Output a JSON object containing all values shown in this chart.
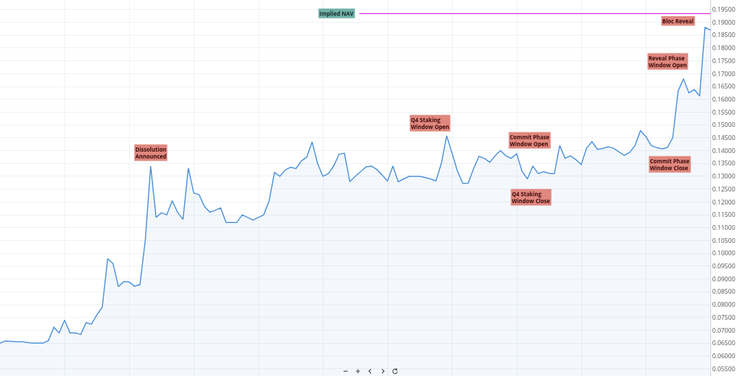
{
  "chart_data": {
    "type": "area",
    "categories": [
      null,
      null,
      null,
      null,
      null,
      null,
      null,
      null,
      null,
      null,
      null,
      null,
      null,
      null,
      null,
      null,
      null,
      null,
      null,
      null,
      null,
      null,
      null,
      null,
      null,
      null,
      null,
      null,
      null,
      null,
      null,
      null,
      null,
      null,
      null,
      null,
      null,
      null,
      null,
      null,
      null,
      null,
      null,
      null,
      null,
      null,
      null,
      null,
      null,
      null,
      null,
      null,
      null,
      null,
      null,
      null,
      null,
      null,
      null,
      null,
      null,
      null,
      null,
      null,
      null,
      null,
      null,
      null,
      null,
      null,
      null,
      null,
      null,
      null,
      null,
      null,
      null,
      null,
      null,
      null,
      null,
      null,
      null,
      null,
      null,
      null,
      null,
      null,
      null,
      null,
      null,
      null,
      null,
      null,
      null,
      null,
      null,
      null,
      null,
      null,
      null,
      null,
      null,
      null,
      null,
      null,
      null,
      null,
      null,
      null,
      null,
      null,
      null,
      null,
      null,
      null,
      null,
      null,
      null,
      null,
      null,
      null,
      null,
      null,
      null,
      null,
      null,
      null,
      null,
      null,
      null,
      null,
      null
    ],
    "series": [
      {
        "color": "#4a90d9",
        "values": [
          0.065,
          0.0658,
          0.0657,
          0.0656,
          0.0656,
          0.0653,
          0.065,
          0.065,
          0.065,
          0.066,
          0.0712,
          0.069,
          0.074,
          0.069,
          0.069,
          0.0684,
          0.073,
          0.0724,
          0.076,
          0.079,
          0.0979,
          0.096,
          0.087,
          0.089,
          0.0888,
          0.0872,
          0.0878,
          0.1052,
          0.134,
          0.114,
          0.1158,
          0.115,
          0.1205,
          0.116,
          0.1132,
          0.1332,
          0.1235,
          0.1228,
          0.1182,
          0.116,
          0.1168,
          0.1177,
          0.112,
          0.112,
          0.112,
          0.115,
          0.114,
          0.113,
          0.114,
          0.115,
          0.1204,
          0.1315,
          0.13,
          0.1325,
          0.1335,
          0.133,
          0.136,
          0.1375,
          0.1434,
          0.135,
          0.13,
          0.131,
          0.134,
          0.1386,
          0.139,
          0.1279,
          0.13,
          0.1318,
          0.1337,
          0.134,
          0.1327,
          0.1305,
          0.1282,
          0.134,
          0.1279,
          0.129,
          0.13,
          0.13,
          0.13,
          0.1295,
          0.129,
          0.1282,
          0.135,
          0.1458,
          0.139,
          0.132,
          0.1272,
          0.1273,
          0.133,
          0.1378,
          0.137,
          0.1355,
          0.138,
          0.14,
          0.138,
          0.137,
          0.1388,
          0.132,
          0.129,
          0.134,
          0.1311,
          0.1318,
          0.1312,
          0.131,
          0.142,
          0.137,
          0.138,
          0.1365,
          0.1346,
          0.141,
          0.1435,
          0.1405,
          0.1408,
          0.1415,
          0.141,
          0.1395,
          0.1382,
          0.1393,
          0.142,
          0.1478,
          0.1455,
          0.142,
          0.1412,
          0.1407,
          0.1412,
          0.145,
          0.1632,
          0.168,
          0.1625,
          0.1638,
          0.1613,
          0.188,
          0.187
        ]
      }
    ],
    "ylim": [
      0.0522,
      0.1987
    ],
    "yticks": [
      {
        "value": 0.055,
        "label": "0.05500"
      },
      {
        "value": 0.06,
        "label": "0.06000"
      },
      {
        "value": 0.065,
        "label": "0.06500"
      },
      {
        "value": 0.07,
        "label": "0.07000"
      },
      {
        "value": 0.075,
        "label": "0.07500"
      },
      {
        "value": 0.08,
        "label": "0.08000"
      },
      {
        "value": 0.085,
        "label": "0.08500"
      },
      {
        "value": 0.09,
        "label": "0.09000"
      },
      {
        "value": 0.095,
        "label": "0.09500"
      },
      {
        "value": 0.1,
        "label": "0.10000"
      },
      {
        "value": 0.105,
        "label": "0.10500"
      },
      {
        "value": 0.11,
        "label": "0.11000"
      },
      {
        "value": 0.115,
        "label": "0.11500"
      },
      {
        "value": 0.12,
        "label": "0.12000"
      },
      {
        "value": 0.125,
        "label": "0.12500"
      },
      {
        "value": 0.13,
        "label": "0.13000"
      },
      {
        "value": 0.135,
        "label": "0.13500"
      },
      {
        "value": 0.14,
        "label": "0.14000"
      },
      {
        "value": 0.145,
        "label": "0.14500"
      },
      {
        "value": 0.15,
        "label": "0.15000"
      },
      {
        "value": 0.155,
        "label": "0.15500"
      },
      {
        "value": 0.16,
        "label": "0.16000"
      },
      {
        "value": 0.165,
        "label": "0.16500"
      },
      {
        "value": 0.17,
        "label": "0.17000"
      },
      {
        "value": 0.175,
        "label": "0.17500"
      },
      {
        "value": 0.18,
        "label": "0.18000"
      },
      {
        "value": 0.185,
        "label": "0.18500"
      },
      {
        "value": 0.19,
        "label": "0.19000"
      },
      {
        "value": 0.195,
        "label": "0.19500"
      }
    ],
    "ref_lines": [
      {
        "axis": "y",
        "value": 0.1934,
        "label": "Implied NAV",
        "color": "#e040e0"
      }
    ],
    "annotations": [
      "Dissolution\nAnnounced",
      "Q4 Staking\nWindow Open",
      "Commit Phase\nWindow Open",
      "Q4 Staking\nWindow Close",
      "Reveal Phase\nWindow Open",
      "Commit Phase\nWindow Close",
      "Bloc Reveal"
    ],
    "grid": true,
    "tick_labels": "y",
    "marker": "none",
    "line_style": "solid"
  }
}
